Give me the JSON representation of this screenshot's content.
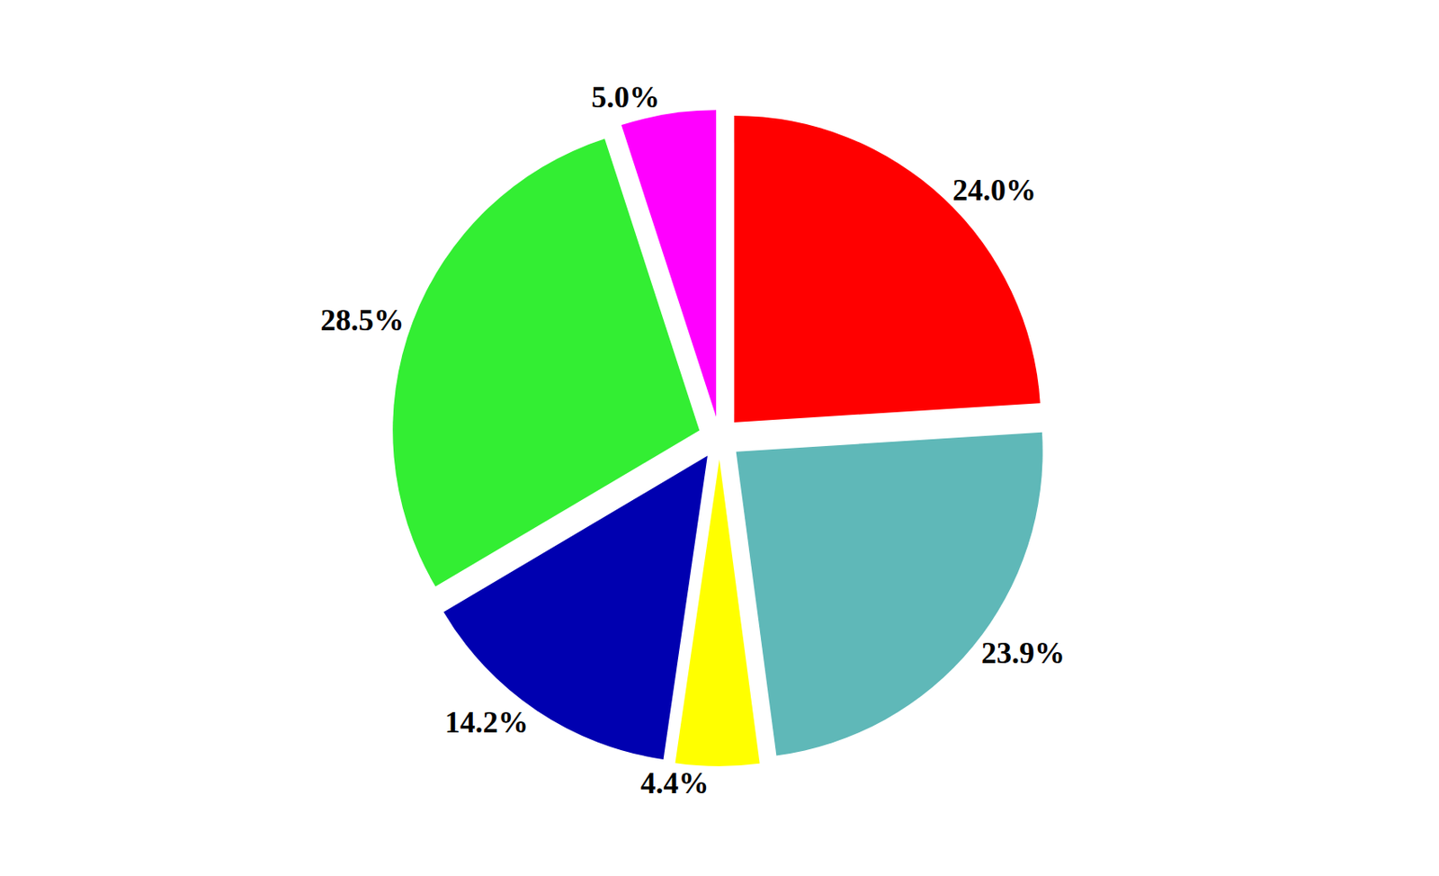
{
  "chart_data": {
    "type": "pie",
    "values": [
      24.0,
      23.9,
      4.4,
      14.2,
      28.5,
      5.0
    ],
    "value_labels": [
      "24.0%",
      "23.9%",
      "4.4%",
      "14.2%",
      "28.5%",
      "5.0%"
    ],
    "colors": [
      "#ff0000",
      "#5fb8b8",
      "#ffff00",
      "#0000b0",
      "#33ee33",
      "#ff00ff"
    ],
    "data_labels": true
  }
}
